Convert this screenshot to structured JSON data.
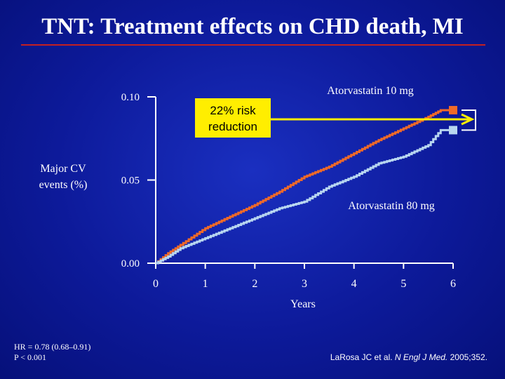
{
  "slide": {
    "title": "TNT: Treatment effects on CHD death, MI",
    "footnote_stats": [
      "HR = 0.78 (0.68–0.91)",
      "P < 0.001"
    ],
    "citation": {
      "authors": "LaRosa JC et al. ",
      "journal": "N Engl J Med.",
      "rest": " 2005;352."
    }
  },
  "colors": {
    "atorva10": "#f06a28",
    "atorva80": "#b8d6f0",
    "arrow": "#ffee00",
    "callout_bg": "#ffee00",
    "callout_text": "#000000"
  },
  "chart_data": {
    "type": "line",
    "xlabel": "Years",
    "ylabel": "Major CV events (%)",
    "xlim": [
      0,
      6
    ],
    "ylim": [
      0,
      0.1
    ],
    "xticks": [
      "0",
      "1",
      "2",
      "3",
      "4",
      "5",
      "6"
    ],
    "yticks": [
      "0.00",
      "0.05",
      "0.10"
    ],
    "annotation": "22% risk reduction",
    "series": [
      {
        "name": "Atorvastatin 10 mg",
        "x": [
          0,
          0.25,
          0.5,
          1.0,
          1.5,
          2.0,
          2.5,
          3.0,
          3.5,
          4.0,
          4.5,
          5.0,
          5.5,
          5.75,
          6.0
        ],
        "y": [
          0,
          0.006,
          0.011,
          0.021,
          0.028,
          0.035,
          0.043,
          0.052,
          0.058,
          0.066,
          0.074,
          0.081,
          0.088,
          0.092,
          0.092
        ]
      },
      {
        "name": "Atorvastatin 80 mg",
        "x": [
          0,
          0.25,
          0.5,
          1.0,
          1.5,
          2.0,
          2.5,
          3.0,
          3.5,
          4.0,
          4.5,
          5.0,
          5.5,
          5.75,
          6.0
        ],
        "y": [
          0,
          0.004,
          0.009,
          0.015,
          0.021,
          0.027,
          0.033,
          0.037,
          0.046,
          0.052,
          0.06,
          0.064,
          0.071,
          0.08,
          0.08
        ]
      }
    ]
  }
}
